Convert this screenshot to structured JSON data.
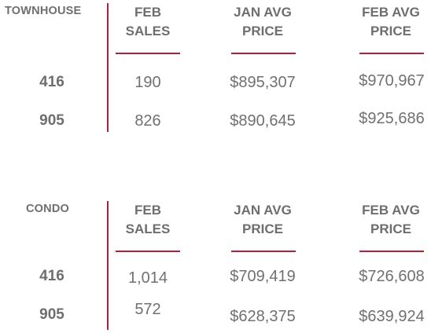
{
  "headers": {
    "feb_sales": [
      "FEB",
      "SALES"
    ],
    "jan_avg_price": [
      "JAN AVG",
      "PRICE"
    ],
    "feb_avg_price": [
      "FEB AVG",
      "PRICE"
    ]
  },
  "townhouse": {
    "type": "TOWNHOUSE",
    "rows": [
      {
        "region": "416",
        "feb_sales": "190",
        "jan_avg_price": "$895,307",
        "feb_avg_price": "$970,967"
      },
      {
        "region": "905",
        "feb_sales": "826",
        "jan_avg_price": "$890,645",
        "feb_avg_price": "$925,686"
      }
    ]
  },
  "condo": {
    "type": "CONDO",
    "rows": [
      {
        "region": "416",
        "feb_sales": "1,014",
        "jan_avg_price": "$709,419",
        "feb_avg_price": "$726,608"
      },
      {
        "region": "905",
        "feb_sales": "572",
        "jan_avg_price": "$628,375",
        "feb_avg_price": "$639,924"
      }
    ]
  },
  "colors": {
    "accent": "#b0203a",
    "text": "#6e6e6e"
  }
}
